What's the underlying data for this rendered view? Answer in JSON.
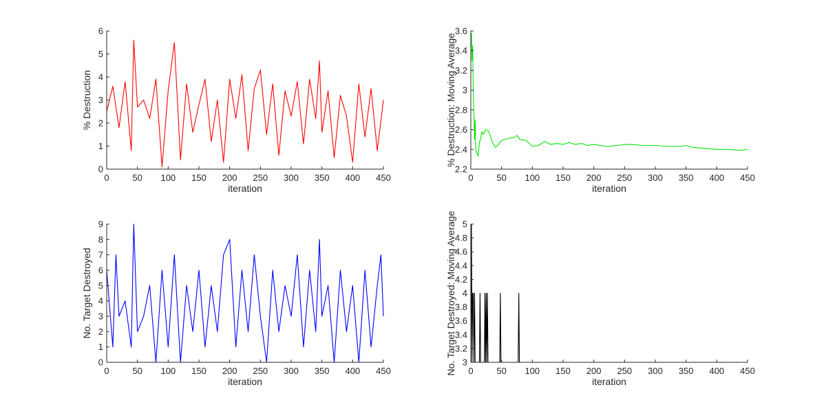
{
  "chart_data": [
    {
      "type": "line",
      "color": "#ff0000",
      "xlabel": "iteration",
      "ylabel": "% Destruction",
      "xlim": [
        0,
        450
      ],
      "ylim": [
        0,
        6
      ],
      "xticks": [
        0,
        50,
        100,
        150,
        200,
        250,
        300,
        350,
        400,
        450
      ],
      "yticks": [
        0,
        1,
        2,
        3,
        4,
        5,
        6
      ],
      "grid": false,
      "series": [
        {
          "x": [
            0,
            10,
            20,
            30,
            40,
            44,
            50,
            60,
            70,
            80,
            90,
            100,
            110,
            120,
            130,
            140,
            150,
            160,
            170,
            180,
            190,
            200,
            210,
            220,
            230,
            240,
            250,
            260,
            270,
            280,
            290,
            300,
            310,
            320,
            330,
            340,
            346,
            350,
            360,
            370,
            380,
            390,
            400,
            410,
            420,
            430,
            440,
            450
          ],
          "values": [
            2.5,
            3.6,
            1.8,
            3.8,
            0.8,
            5.6,
            2.7,
            3.0,
            2.2,
            3.9,
            0.1,
            3.4,
            5.5,
            0.4,
            3.7,
            1.6,
            2.8,
            3.9,
            1.2,
            3.0,
            0.3,
            3.9,
            2.2,
            4.1,
            0.8,
            3.5,
            4.3,
            1.5,
            3.7,
            0.6,
            3.4,
            2.3,
            3.8,
            1.1,
            3.9,
            2.2,
            4.7,
            1.6,
            3.4,
            0.5,
            3.2,
            2.3,
            0.3,
            3.7,
            1.4,
            3.5,
            0.8,
            3.0
          ]
        }
      ]
    },
    {
      "type": "line",
      "color": "#00e600",
      "xlabel": "iteration",
      "ylabel": "% Destruction: Moving Average",
      "xlim": [
        0,
        450
      ],
      "ylim": [
        2.2,
        3.6
      ],
      "xticks": [
        0,
        50,
        100,
        150,
        200,
        250,
        300,
        350,
        400,
        450
      ],
      "yticks": [
        2.2,
        2.4,
        2.6,
        2.8,
        3,
        3.2,
        3.4,
        3.6
      ],
      "grid": false,
      "series": [
        {
          "x": [
            1,
            2,
            3,
            4,
            5,
            6,
            7,
            8,
            10,
            12,
            14,
            16,
            18,
            20,
            24,
            28,
            30,
            35,
            40,
            45,
            50,
            60,
            70,
            75,
            80,
            90,
            100,
            110,
            120,
            130,
            140,
            150,
            160,
            170,
            180,
            190,
            200,
            220,
            240,
            250,
            260,
            280,
            300,
            320,
            340,
            350,
            360,
            380,
            400,
            420,
            440,
            450
          ],
          "values": [
            3.58,
            3.3,
            3.45,
            2.95,
            2.75,
            2.5,
            2.7,
            2.4,
            2.36,
            2.33,
            2.47,
            2.51,
            2.58,
            2.55,
            2.6,
            2.59,
            2.57,
            2.47,
            2.42,
            2.45,
            2.49,
            2.51,
            2.52,
            2.54,
            2.5,
            2.49,
            2.43,
            2.44,
            2.48,
            2.45,
            2.46,
            2.45,
            2.47,
            2.45,
            2.46,
            2.44,
            2.45,
            2.43,
            2.44,
            2.45,
            2.45,
            2.44,
            2.44,
            2.43,
            2.43,
            2.44,
            2.42,
            2.41,
            2.4,
            2.4,
            2.39,
            2.4
          ]
        }
      ]
    },
    {
      "type": "line",
      "color": "#0000ff",
      "xlabel": "iteration",
      "ylabel": "No. Target Destroyed",
      "xlim": [
        0,
        450
      ],
      "ylim": [
        0,
        9
      ],
      "xticks": [
        0,
        50,
        100,
        150,
        200,
        250,
        300,
        350,
        400,
        450
      ],
      "yticks": [
        0,
        1,
        2,
        3,
        4,
        5,
        6,
        7,
        8,
        9
      ],
      "grid": false,
      "series": [
        {
          "x": [
            0,
            10,
            15,
            20,
            30,
            40,
            44,
            50,
            60,
            70,
            80,
            90,
            100,
            110,
            120,
            130,
            140,
            150,
            160,
            170,
            180,
            190,
            200,
            210,
            220,
            230,
            240,
            250,
            260,
            270,
            280,
            290,
            300,
            310,
            320,
            330,
            340,
            346,
            350,
            360,
            370,
            380,
            390,
            400,
            410,
            420,
            430,
            440,
            446,
            450
          ],
          "values": [
            6,
            1,
            7,
            3,
            4,
            1,
            9,
            2,
            3,
            5,
            0,
            6,
            1,
            7,
            0,
            5,
            2,
            6,
            1,
            5,
            2,
            7,
            8,
            1,
            6,
            2,
            7,
            3,
            0,
            6,
            2,
            5,
            3,
            7,
            1,
            6,
            2,
            8,
            3,
            5,
            0,
            6,
            2,
            5,
            0,
            6,
            1,
            5,
            7,
            3
          ]
        }
      ]
    },
    {
      "type": "line",
      "color": "#000000",
      "xlabel": "iteration",
      "ylabel": "No. Target Destroyed: Moving Average",
      "xlim": [
        0,
        450
      ],
      "ylim": [
        3,
        5
      ],
      "xticks": [
        0,
        50,
        100,
        150,
        200,
        250,
        300,
        350,
        400,
        450
      ],
      "yticks": [
        3,
        3.2,
        3.4,
        3.6,
        3.8,
        4,
        4.2,
        4.4,
        4.6,
        4.8,
        5
      ],
      "grid": false,
      "series": [
        {
          "x": [
            0,
            1,
            2,
            3,
            4,
            5,
            6,
            7,
            14,
            15,
            16,
            17,
            22,
            23,
            24,
            25,
            26,
            27,
            28,
            29,
            47,
            48,
            49,
            77,
            78,
            79,
            450
          ],
          "values": [
            3,
            5,
            3,
            4,
            4,
            3,
            4,
            3,
            3,
            4,
            3,
            3,
            3,
            4,
            3,
            4,
            3,
            4,
            3,
            3,
            3,
            4,
            3,
            3,
            4,
            3,
            3
          ]
        }
      ]
    }
  ]
}
